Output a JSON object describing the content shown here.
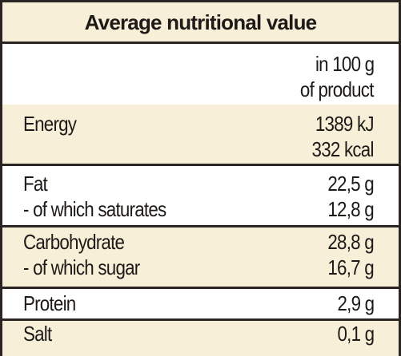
{
  "table": {
    "title": "Average nutritional value",
    "unit_header_line1": "in 100 g",
    "unit_header_line2": "of product",
    "rows": [
      {
        "label_line1": "Energy",
        "value_line1": "1389 kJ",
        "value_line2": "332 kcal"
      },
      {
        "label_line1": "Fat",
        "label_line2": "- of which saturates",
        "value_line1": "22,5 g",
        "value_line2": "12,8 g"
      },
      {
        "label_line1": "Carbohydrate",
        "label_line2": "- of which sugar",
        "value_line1": "28,8 g",
        "value_line2": "16,7 g"
      },
      {
        "label_line1": "Protein",
        "value_line1": "2,9 g"
      },
      {
        "label_line1": "Salt",
        "value_line1": "0,1 g"
      }
    ]
  }
}
